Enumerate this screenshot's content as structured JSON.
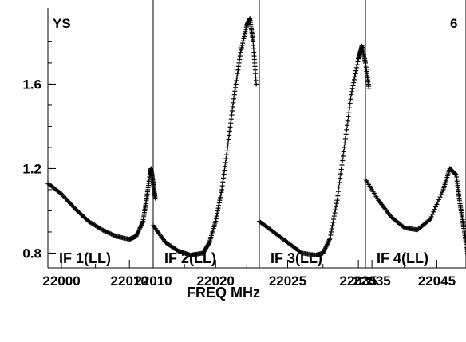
{
  "chart_data": {
    "type": "scatter",
    "source_label": "YS",
    "corner_label": "6",
    "xlabel": "FREQ MHz",
    "ylabel": "",
    "ylim": [
      0.73,
      1.96
    ],
    "y_ticks": [
      0.8,
      1.2,
      1.6
    ],
    "y_tick_labels": [
      "0.8",
      "1.2",
      "1.6"
    ],
    "marker": "+",
    "color": "#000000",
    "panels": [
      {
        "name": "IF 1(LL)",
        "xlim": [
          21998,
          22013.5
        ],
        "x_ticks": [
          22000,
          22010
        ],
        "x_tick_labels": [
          "22000",
          "22010"
        ],
        "x_minor_ticks": [
          22005
        ],
        "points": [
          [
            21998,
            1.13
          ],
          [
            22000,
            1.08
          ],
          [
            22002,
            1.01
          ],
          [
            22004,
            0.95
          ],
          [
            22006,
            0.91
          ],
          [
            22008,
            0.88
          ],
          [
            22010,
            0.865
          ],
          [
            22011,
            0.88
          ],
          [
            22012,
            0.95
          ],
          [
            22012.5,
            1.05
          ],
          [
            22013,
            1.17
          ],
          [
            22013.2,
            1.2
          ],
          [
            22013.5,
            1.13
          ],
          [
            22013.8,
            1.06
          ]
        ]
      },
      {
        "name": "IF 2(LL)",
        "xlim": [
          22010,
          22027
        ],
        "x_ticks": [
          22010,
          22020
        ],
        "x_tick_labels": [
          "22010",
          "22020"
        ],
        "x_minor_ticks": [
          22015,
          22025
        ],
        "points": [
          [
            22010,
            0.93
          ],
          [
            22012,
            0.85
          ],
          [
            22014,
            0.81
          ],
          [
            22016,
            0.79
          ],
          [
            22018,
            0.8
          ],
          [
            22019,
            0.85
          ],
          [
            22020,
            0.95
          ],
          [
            22021,
            1.1
          ],
          [
            22022,
            1.32
          ],
          [
            22023,
            1.55
          ],
          [
            22024,
            1.75
          ],
          [
            22025,
            1.88
          ],
          [
            22025.5,
            1.91
          ],
          [
            22026,
            1.8
          ],
          [
            22026.5,
            1.6
          ]
        ]
      },
      {
        "name": "IF 3(LL)",
        "xlim": [
          22021,
          22036
        ],
        "x_ticks": [
          22025,
          22035
        ],
        "x_tick_labels": [
          "22025",
          "22035"
        ],
        "x_minor_ticks": [
          22030
        ],
        "points": [
          [
            22021,
            0.95
          ],
          [
            22023,
            0.9
          ],
          [
            22025,
            0.85
          ],
          [
            22027,
            0.8
          ],
          [
            22029,
            0.79
          ],
          [
            22030,
            0.8
          ],
          [
            22031,
            0.87
          ],
          [
            22032,
            1.05
          ],
          [
            22033,
            1.3
          ],
          [
            22034,
            1.55
          ],
          [
            22035,
            1.72
          ],
          [
            22035.5,
            1.78
          ],
          [
            22036,
            1.7
          ],
          [
            22036.5,
            1.58
          ]
        ]
      },
      {
        "name": "IF 4(LL)",
        "xlim": [
          22034,
          22049.5
        ],
        "x_ticks": [
          22035,
          22045
        ],
        "x_tick_labels": [
          "22035",
          "22045"
        ],
        "x_minor_ticks": [
          22040
        ],
        "points": [
          [
            22034,
            1.15
          ],
          [
            22036,
            1.05
          ],
          [
            22038,
            0.97
          ],
          [
            22040,
            0.92
          ],
          [
            22042,
            0.91
          ],
          [
            22044,
            0.96
          ],
          [
            22046,
            1.1
          ],
          [
            22047,
            1.2
          ],
          [
            22048,
            1.17
          ],
          [
            22048.5,
            1.05
          ],
          [
            22049,
            0.95
          ],
          [
            22049.5,
            0.85
          ],
          [
            22050,
            0.75
          ]
        ]
      }
    ]
  }
}
